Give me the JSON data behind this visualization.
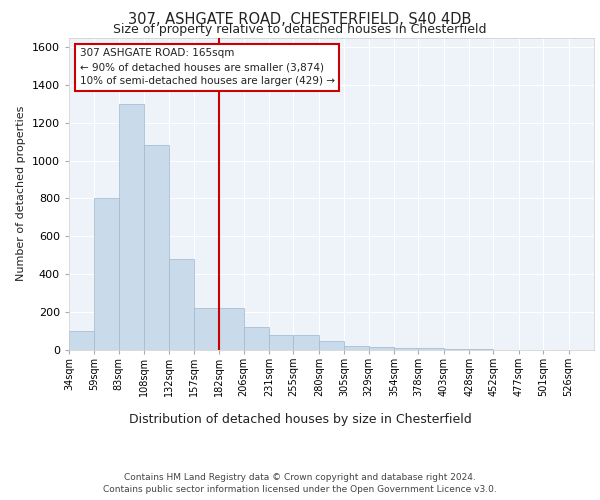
{
  "title_line1": "307, ASHGATE ROAD, CHESTERFIELD, S40 4DB",
  "title_line2": "Size of property relative to detached houses in Chesterfield",
  "xlabel": "Distribution of detached houses by size in Chesterfield",
  "ylabel": "Number of detached properties",
  "footer_line1": "Contains HM Land Registry data © Crown copyright and database right 2024.",
  "footer_line2": "Contains public sector information licensed under the Open Government Licence v3.0.",
  "annotation_line1": "307 ASHGATE ROAD: 165sqm",
  "annotation_line2": "← 90% of detached houses are smaller (3,874)",
  "annotation_line3": "10% of semi-detached houses are larger (429) →",
  "property_size": 165,
  "bar_color": "#c9daea",
  "bar_edgecolor": "#a0b8d0",
  "vline_color": "#cc0000",
  "vline_x": 165,
  "background_color": "#eef2f9",
  "grid_color": "#ffffff",
  "categories": [
    "34sqm",
    "59sqm",
    "83sqm",
    "108sqm",
    "132sqm",
    "157sqm",
    "182sqm",
    "206sqm",
    "231sqm",
    "255sqm",
    "280sqm",
    "305sqm",
    "329sqm",
    "354sqm",
    "378sqm",
    "403sqm",
    "428sqm",
    "452sqm",
    "477sqm",
    "501sqm",
    "526sqm"
  ],
  "bin_edges": [
    34,
    59,
    83,
    108,
    132,
    157,
    182,
    206,
    231,
    255,
    280,
    305,
    329,
    354,
    378,
    403,
    428,
    452,
    477,
    501,
    526,
    551
  ],
  "values": [
    100,
    800,
    1300,
    1080,
    480,
    220,
    220,
    120,
    80,
    80,
    50,
    20,
    15,
    10,
    8,
    5,
    3,
    2,
    2,
    2,
    2
  ],
  "ylim": [
    0,
    1650
  ],
  "yticks": [
    0,
    200,
    400,
    600,
    800,
    1000,
    1200,
    1400,
    1600
  ]
}
